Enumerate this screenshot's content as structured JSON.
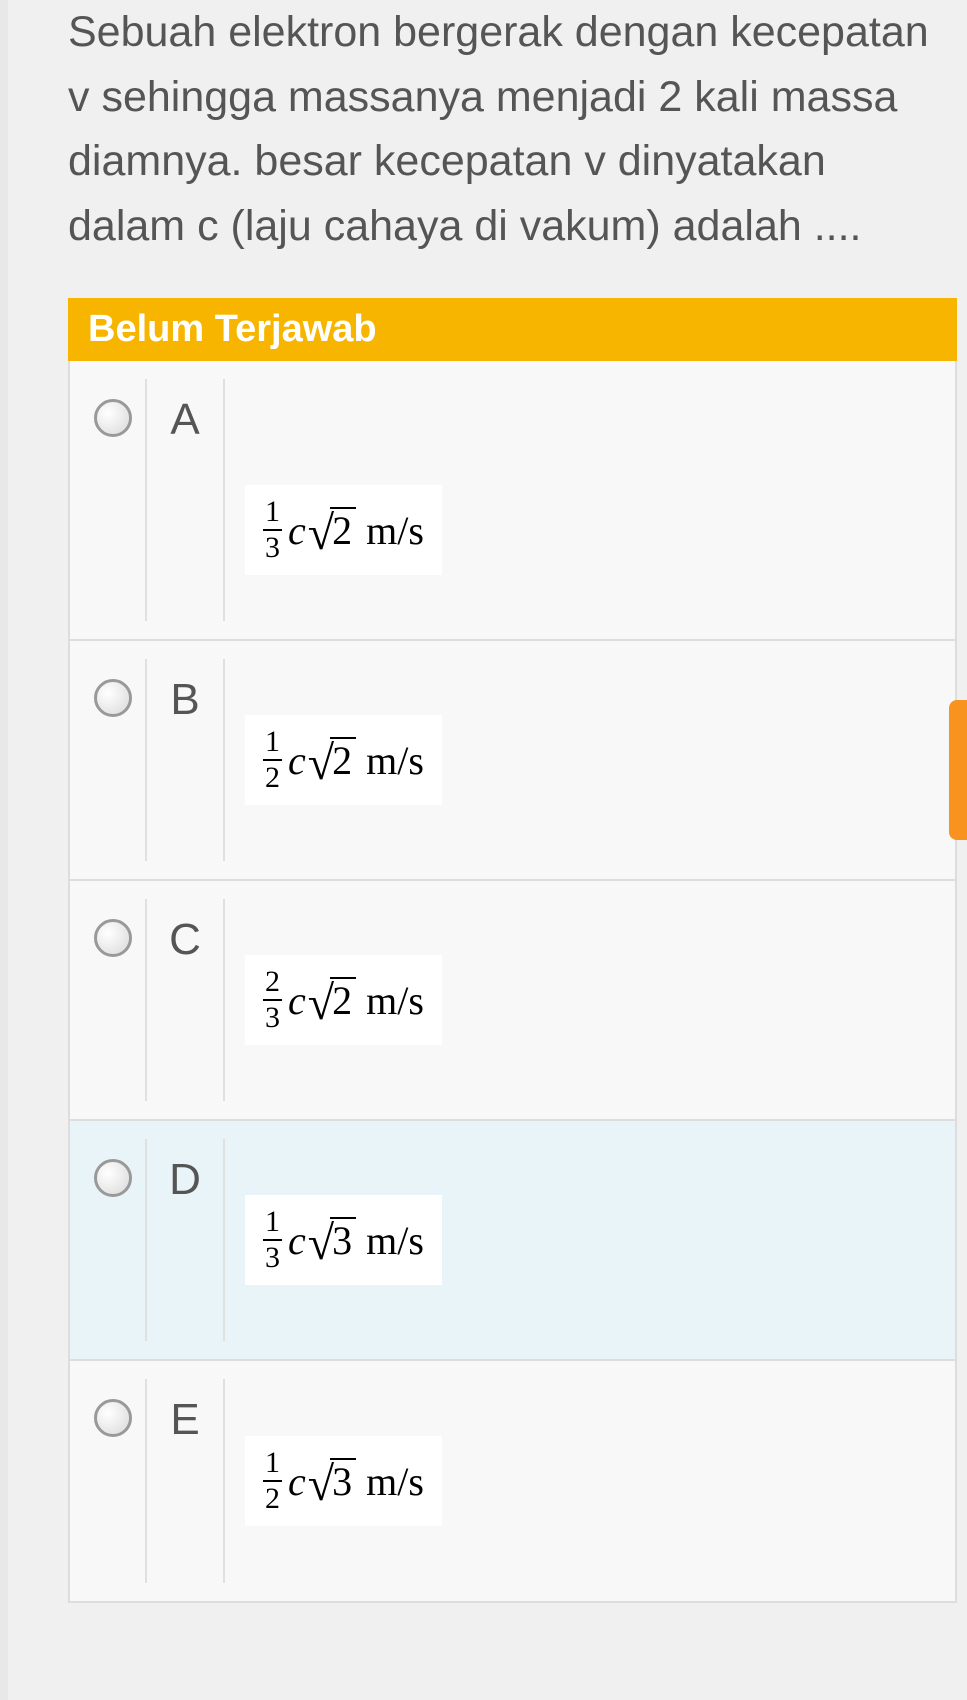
{
  "question": {
    "text": "Sebuah elektron bergerak dengan kecepatan v sehingga massanya menjadi 2 kali massa diamnya. besar kecepatan v dinyatakan dalam c (laju cahaya di vakum) adalah ...."
  },
  "status": {
    "label": "Belum Terjawab",
    "bg_color": "#f7b500",
    "text_color": "#ffffff"
  },
  "options": [
    {
      "letter": "A",
      "frac_num": "1",
      "frac_den": "3",
      "radicand": "2",
      "unit": "m/s",
      "selected": false
    },
    {
      "letter": "B",
      "frac_num": "1",
      "frac_den": "2",
      "radicand": "2",
      "unit": "m/s",
      "selected": false
    },
    {
      "letter": "C",
      "frac_num": "2",
      "frac_den": "3",
      "radicand": "2",
      "unit": "m/s",
      "selected": false
    },
    {
      "letter": "D",
      "frac_num": "1",
      "frac_den": "3",
      "radicand": "3",
      "unit": "m/s",
      "selected": true
    },
    {
      "letter": "E",
      "frac_num": "1",
      "frac_den": "2",
      "radicand": "3",
      "unit": "m/s",
      "selected": false
    }
  ],
  "colors": {
    "page_bg": "#f0f0f0",
    "text_color": "#555555",
    "border_color": "#dddddd",
    "selected_bg": "#e8f4f8",
    "side_tab": "#f7931e"
  }
}
